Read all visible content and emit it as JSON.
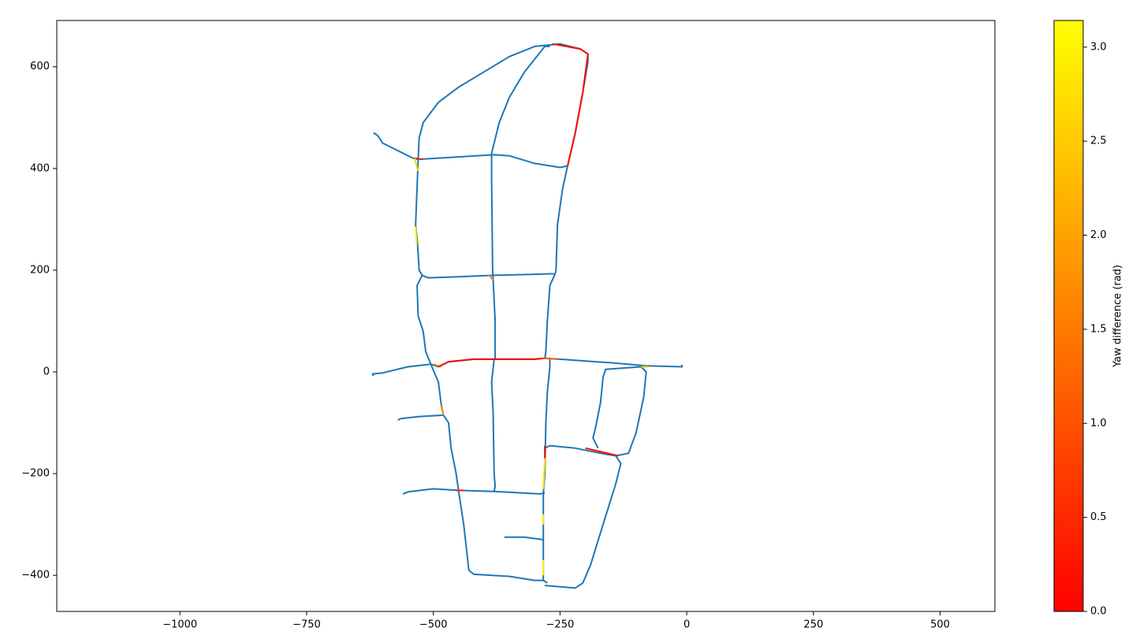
{
  "chart_data": {
    "type": "line",
    "xlim": [
      -1243,
      608
    ],
    "ylim": [
      -471,
      691
    ],
    "xticks": [
      {
        "value": -1000,
        "label": "−1000"
      },
      {
        "value": -750,
        "label": "−750"
      },
      {
        "value": -500,
        "label": "−500"
      },
      {
        "value": -250,
        "label": "−250"
      },
      0,
      250,
      500
    ],
    "yticks": [
      {
        "value": -400,
        "label": "−400"
      },
      {
        "value": -200,
        "label": "−200"
      },
      0,
      200,
      400,
      600
    ],
    "series": [
      {
        "color": "#1f77b4",
        "x": [
          -618,
          -610,
          -600,
          -580,
          -540,
          -530
        ],
        "y": [
          470,
          465,
          450,
          440,
          420,
          418
        ]
      },
      {
        "color": "#1f77b4",
        "x": [
          -530,
          -528,
          -520,
          -490,
          -450,
          -400,
          -350,
          -300,
          -250,
          -210,
          -195,
          -195,
          -205,
          -220,
          -235
        ],
        "y": [
          415,
          460,
          490,
          530,
          560,
          590,
          620,
          640,
          645,
          635,
          625,
          610,
          550,
          470,
          405
        ]
      },
      {
        "color": "#1f77b4",
        "x": [
          -530,
          -380,
          -350,
          -300,
          -250,
          -235
        ],
        "y": [
          418,
          427,
          425,
          410,
          402,
          405
        ]
      },
      {
        "color": "#1f77b4",
        "x": [
          -530,
          -535,
          -531,
          -528,
          -522,
          -532,
          -530,
          -520,
          -515,
          -505,
          -490
        ],
        "y": [
          415,
          290,
          250,
          200,
          190,
          170,
          110,
          80,
          40,
          15,
          10
        ]
      },
      {
        "color": "#1f77b4",
        "x": [
          -270,
          -280,
          -320,
          -350,
          -370,
          -385,
          -385,
          -383,
          -378,
          -378
        ],
        "y": [
          640,
          640,
          590,
          540,
          490,
          430,
          380,
          200,
          100,
          25
        ]
      },
      {
        "color": "#1f77b4",
        "x": [
          -235,
          -245,
          -255,
          -258,
          -260,
          -270,
          -275,
          -278,
          -280
        ],
        "y": [
          405,
          360,
          290,
          200,
          192,
          170,
          100,
          40,
          25
        ]
      },
      {
        "color": "#1f77b4",
        "x": [
          -522,
          -510,
          -450,
          -380,
          -300,
          -262
        ],
        "y": [
          190,
          185,
          187,
          190,
          192,
          193
        ]
      },
      {
        "color": "#1f77b4",
        "x": [
          -490,
          -470,
          -420,
          -300,
          -280,
          -250,
          -150,
          -80,
          -9,
          -10
        ],
        "y": [
          10,
          20,
          25,
          25,
          27,
          25,
          18,
          12,
          10,
          14
        ]
      },
      {
        "color": "#1f77b4",
        "x": [
          -618,
          -620,
          -600,
          -550,
          -505
        ],
        "y": [
          -8,
          -4,
          -2,
          10,
          15
        ]
      },
      {
        "color": "#1f77b4",
        "x": [
          -505,
          -490,
          -485,
          -480,
          -470,
          -465,
          -455,
          -450
        ],
        "y": [
          15,
          -20,
          -60,
          -85,
          -100,
          -150,
          -200,
          -235
        ]
      },
      {
        "color": "#1f77b4",
        "x": [
          -570,
          -565,
          -530,
          -480
        ],
        "y": [
          -95,
          -92,
          -88,
          -85
        ]
      },
      {
        "color": "#1f77b4",
        "x": [
          -380,
          -385,
          -382,
          -380,
          -378,
          -380
        ],
        "y": [
          25,
          -20,
          -80,
          -200,
          -225,
          -235
        ]
      },
      {
        "color": "#1f77b4",
        "x": [
          -560,
          -550,
          -500,
          -450,
          -380,
          -290,
          -280
        ],
        "y": [
          -240,
          -236,
          -230,
          -233,
          -235,
          -240,
          -238
        ]
      },
      {
        "color": "#1f77b4",
        "x": [
          -270,
          -270,
          -275,
          -278,
          -280,
          -283,
          -283,
          -283,
          -275
        ],
        "y": [
          25,
          10,
          -40,
          -100,
          -200,
          -240,
          -330,
          -410,
          -415
        ]
      },
      {
        "color": "#1f77b4",
        "x": [
          -450,
          -440,
          -430,
          -420,
          -350,
          -300,
          -283
        ],
        "y": [
          -235,
          -300,
          -390,
          -398,
          -402,
          -410,
          -410
        ]
      },
      {
        "color": "#1f77b4",
        "x": [
          -360,
          -320,
          -283
        ],
        "y": [
          -325,
          -325,
          -330
        ]
      },
      {
        "color": "#1f77b4",
        "x": [
          -280,
          -270,
          -220,
          -170,
          -140,
          -130,
          -140,
          -165,
          -190,
          -205,
          -220,
          -280
        ],
        "y": [
          -150,
          -145,
          -150,
          -160,
          -165,
          -180,
          -220,
          -300,
          -380,
          -415,
          -425,
          -420
        ]
      },
      {
        "color": "#1f77b4",
        "x": [
          -175,
          -185,
          -180,
          -170,
          -165,
          -160,
          -90,
          -80,
          -85,
          -100,
          -115,
          -140
        ],
        "y": [
          -150,
          -130,
          -110,
          -60,
          -10,
          5,
          10,
          0,
          -50,
          -120,
          -160,
          -165
        ]
      }
    ],
    "segments": [
      {
        "x": [
          -265,
          -210,
          -195,
          -205,
          -220,
          -235
        ],
        "y": [
          645,
          635,
          625,
          550,
          470,
          405
        ],
        "value": 0.1
      },
      {
        "x": [
          -537,
          -520
        ],
        "y": [
          420,
          418
        ],
        "value": 0.4
      },
      {
        "x": [
          -537,
          -530
        ],
        "y": [
          420,
          395
        ],
        "value": 2.6
      },
      {
        "x": [
          -535,
          -533
        ],
        "y": [
          285,
          250
        ],
        "value": 3.0
      },
      {
        "x": [
          -390,
          -382
        ],
        "y": [
          190,
          180
        ],
        "value": 1.8
      },
      {
        "x": [
          -500,
          -485
        ],
        "y": [
          15,
          10
        ],
        "value": 1.5
      },
      {
        "x": [
          -490,
          -470,
          -420,
          -300,
          -280
        ],
        "y": [
          10,
          20,
          25,
          25,
          27
        ],
        "value": 0.05
      },
      {
        "x": [
          -285,
          -255
        ],
        "y": [
          27,
          25
        ],
        "value": 1.2
      },
      {
        "x": [
          -90,
          -75
        ],
        "y": [
          10,
          10
        ],
        "value": 2.5
      },
      {
        "x": [
          -485,
          -480
        ],
        "y": [
          -65,
          -85
        ],
        "value": 1.8
      },
      {
        "x": [
          -455,
          -440
        ],
        "y": [
          -233,
          -233
        ],
        "value": 0.3
      },
      {
        "x": [
          -280,
          -280
        ],
        "y": [
          -145,
          -170
        ],
        "value": 0.2
      },
      {
        "x": [
          -280,
          -283
        ],
        "y": [
          -170,
          -230
        ],
        "value": 2.8
      },
      {
        "x": [
          -283,
          -283
        ],
        "y": [
          -280,
          -300
        ],
        "value": 3.0
      },
      {
        "x": [
          -283,
          -283
        ],
        "y": [
          -370,
          -400
        ],
        "value": 3.0
      },
      {
        "x": [
          -200,
          -135
        ],
        "y": [
          -150,
          -165
        ],
        "value": 0.1
      }
    ],
    "colormap": "autumn",
    "colorbar": {
      "label": "Yaw difference (rad)",
      "lim": [
        0,
        3.14159
      ],
      "ticks": [
        {
          "value": 0,
          "label": "0.0"
        },
        {
          "value": 0.5,
          "label": "0.5"
        },
        {
          "value": 1,
          "label": "1.0"
        },
        {
          "value": 1.5,
          "label": "1.5"
        },
        {
          "value": 2,
          "label": "2.0"
        },
        {
          "value": 2.5,
          "label": "2.5"
        },
        {
          "value": 3,
          "label": "3.0"
        }
      ]
    }
  }
}
